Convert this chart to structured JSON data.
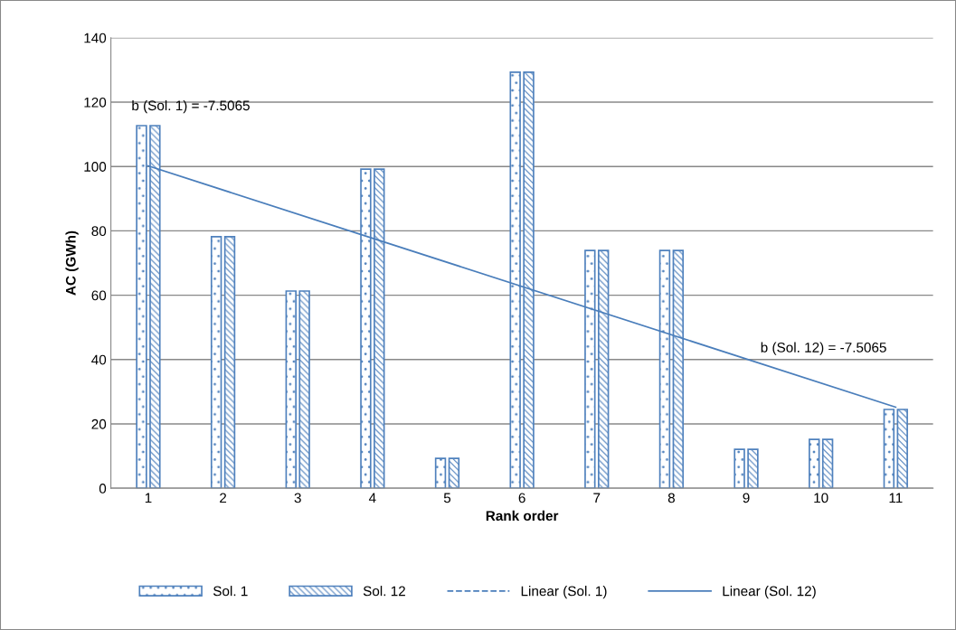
{
  "chart_data": {
    "type": "bar",
    "xlabel": "Rank order",
    "ylabel": "AC (GWh)",
    "x": [
      1,
      2,
      3,
      4,
      5,
      6,
      7,
      8,
      9,
      10,
      11
    ],
    "xlim": [
      0.5,
      11.5
    ],
    "xticks": [
      1,
      2,
      3,
      4,
      5,
      6,
      7,
      8,
      9,
      10,
      11
    ],
    "ylim": [
      0,
      140
    ],
    "yticks": [
      0,
      20,
      40,
      60,
      80,
      100,
      120,
      140
    ],
    "grid": "y",
    "legend": "bottom",
    "series": [
      {
        "name": "Sol. 1",
        "color": "#4f81bd",
        "values": [
          112.7,
          78.2,
          61.3,
          99.2,
          9.3,
          129.3,
          73.9,
          73.9,
          12.1,
          15.2,
          24.5
        ]
      },
      {
        "name": "Sol. 12",
        "color": "#4f81bd",
        "values": [
          112.7,
          78.2,
          61.3,
          99.2,
          9.3,
          129.3,
          73.9,
          73.9,
          12.1,
          15.2,
          24.5
        ]
      },
      {
        "name": "Linear (Sol. 1)",
        "type": "line",
        "color": "#4a7ebb",
        "line_style": "dashed",
        "values": [
          null,
          null,
          null,
          null,
          null,
          null,
          null,
          null,
          null,
          null,
          null
        ]
      },
      {
        "name": "Linear (Sol. 12)",
        "type": "line",
        "color": "#4a7ebb",
        "line_style": "solid",
        "x": [
          1,
          11
        ],
        "values": [
          100.2,
          25.2
        ]
      }
    ],
    "annotations": [
      "b (Sol. 1) = -7.5065",
      "b (Sol. 12) = -7.5065"
    ]
  }
}
